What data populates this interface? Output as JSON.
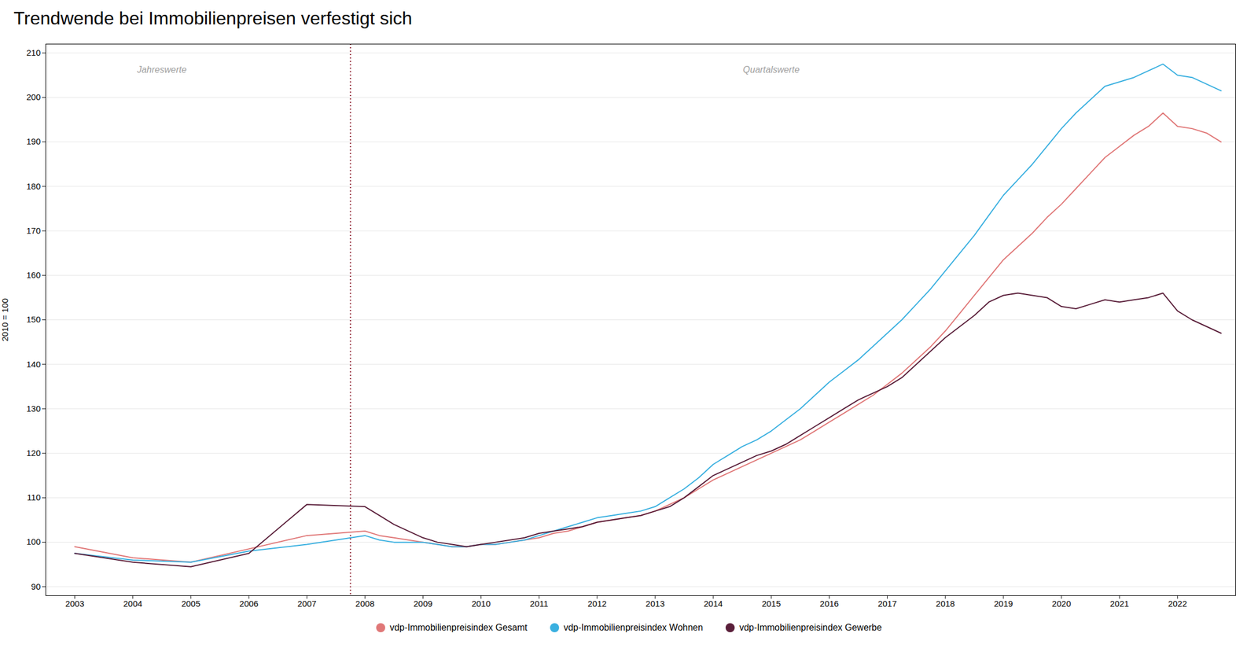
{
  "chart_data": {
    "type": "line",
    "title": "Trendwende bei Immobilienpreisen verfestigt sich",
    "ylabel": "2010 = 100",
    "x": [
      2003,
      2004,
      2005,
      2006,
      2007,
      2008.0,
      2008.25,
      2008.5,
      2008.75,
      2009.0,
      2009.25,
      2009.5,
      2009.75,
      2010.0,
      2010.25,
      2010.5,
      2010.75,
      2011.0,
      2011.25,
      2011.5,
      2011.75,
      2012.0,
      2012.25,
      2012.5,
      2012.75,
      2013.0,
      2013.25,
      2013.5,
      2013.75,
      2014.0,
      2014.25,
      2014.5,
      2014.75,
      2015.0,
      2015.25,
      2015.5,
      2015.75,
      2016.0,
      2016.25,
      2016.5,
      2016.75,
      2017.0,
      2017.25,
      2017.5,
      2017.75,
      2018.0,
      2018.25,
      2018.5,
      2018.75,
      2019.0,
      2019.25,
      2019.5,
      2019.75,
      2020.0,
      2020.25,
      2020.5,
      2020.75,
      2021.0,
      2021.25,
      2021.5,
      2021.75,
      2022.0,
      2022.25,
      2022.5,
      2022.75
    ],
    "xlim": [
      2002.5,
      2023.0
    ],
    "xticks": [
      2003,
      2004,
      2005,
      2006,
      2007,
      2008,
      2009,
      2010,
      2011,
      2012,
      2013,
      2014,
      2015,
      2016,
      2017,
      2018,
      2019,
      2020,
      2021,
      2022
    ],
    "ylim": [
      88,
      212
    ],
    "yticks": [
      90,
      100,
      110,
      120,
      130,
      140,
      150,
      160,
      170,
      180,
      190,
      200,
      210
    ],
    "grid": true,
    "legend": "bottom",
    "series": [
      {
        "name": "vdp-Immobilienpreisindex Gesamt",
        "color": "#e07878",
        "values": [
          99.0,
          96.5,
          95.5,
          98.5,
          101.5,
          102.5,
          101.5,
          101.0,
          100.5,
          100.0,
          99.5,
          99.0,
          99.0,
          99.5,
          99.5,
          100.0,
          100.5,
          101.0,
          102.0,
          102.5,
          103.5,
          104.5,
          105.0,
          105.5,
          106.0,
          107.0,
          108.5,
          110.0,
          112.0,
          114.0,
          115.5,
          117.0,
          118.5,
          120.0,
          121.5,
          123.0,
          125.0,
          127.0,
          129.0,
          131.0,
          133.0,
          135.5,
          138.0,
          141.0,
          144.0,
          147.5,
          151.5,
          155.5,
          159.5,
          163.5,
          166.5,
          169.5,
          173.0,
          176.0,
          179.5,
          183.0,
          186.5,
          189.0,
          191.5,
          193.5,
          196.5,
          193.5,
          193.0,
          192.0,
          190.0
        ]
      },
      {
        "name": "vdp-Immobilienpreisindex Wohnen",
        "color": "#3ab0e0",
        "values": [
          97.5,
          96.0,
          95.5,
          98.0,
          99.5,
          101.5,
          100.5,
          100.0,
          100.0,
          100.0,
          99.5,
          99.0,
          99.0,
          99.5,
          99.5,
          100.0,
          100.5,
          101.5,
          102.5,
          103.5,
          104.5,
          105.5,
          106.0,
          106.5,
          107.0,
          108.0,
          110.0,
          112.0,
          114.5,
          117.5,
          119.5,
          121.5,
          123.0,
          125.0,
          127.5,
          130.0,
          133.0,
          136.0,
          138.5,
          141.0,
          144.0,
          147.0,
          150.0,
          153.5,
          157.0,
          161.0,
          165.0,
          169.0,
          173.5,
          178.0,
          181.5,
          185.0,
          189.0,
          193.0,
          196.5,
          199.5,
          202.5,
          203.5,
          204.5,
          206.0,
          207.5,
          205.0,
          204.5,
          203.0,
          201.5
        ]
      },
      {
        "name": "vdp-Immobilienpreisindex Gewerbe",
        "color": "#5a1f3a",
        "values": [
          97.5,
          95.5,
          94.5,
          97.5,
          108.5,
          108.0,
          106.0,
          104.0,
          102.5,
          101.0,
          100.0,
          99.5,
          99.0,
          99.5,
          100.0,
          100.5,
          101.0,
          102.0,
          102.5,
          103.0,
          103.5,
          104.5,
          105.0,
          105.5,
          106.0,
          107.0,
          108.0,
          110.0,
          112.5,
          115.0,
          116.5,
          118.0,
          119.5,
          120.5,
          122.0,
          124.0,
          126.0,
          128.0,
          130.0,
          132.0,
          133.5,
          135.0,
          137.0,
          140.0,
          143.0,
          146.0,
          148.5,
          151.0,
          154.0,
          155.5,
          156.0,
          155.5,
          155.0,
          153.0,
          152.5,
          153.5,
          154.5,
          154.0,
          154.5,
          155.0,
          156.0,
          152.0,
          150.0,
          148.5,
          147.0
        ]
      }
    ],
    "annotations": [
      {
        "text": "Jahreswerte",
        "x": 2004.5,
        "y": 207
      },
      {
        "text": "Quartalswerte",
        "x": 2015.0,
        "y": 207
      }
    ],
    "reference_lines": [
      {
        "x": 2007.75,
        "color": "#8b1a2a",
        "line_style": "dotted"
      }
    ]
  }
}
